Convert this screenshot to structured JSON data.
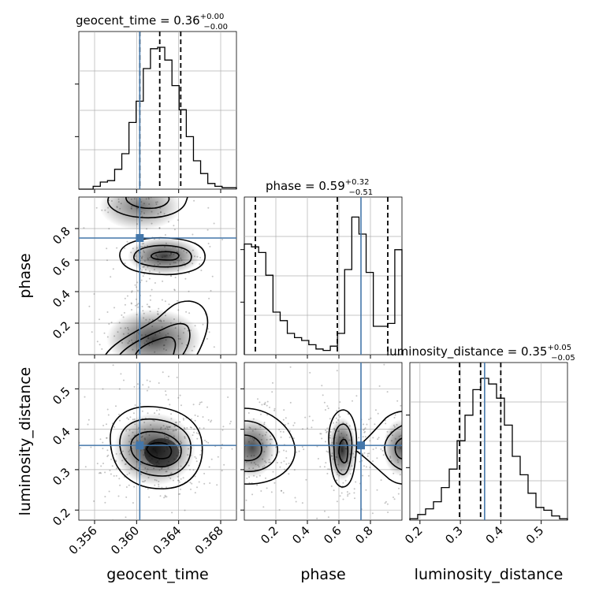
{
  "chart_data": {
    "type": "corner",
    "parameters": [
      "geocent_time",
      "phase",
      "luminosity_distance"
    ],
    "titles": [
      {
        "param": "geocent_time",
        "text": "geocent_time = 0.36",
        "median": 0.36,
        "plus": "+0.00",
        "minus": "−0.00"
      },
      {
        "param": "phase",
        "text": "phase = 0.59",
        "median": 0.59,
        "plus": "+0.32",
        "minus": "−0.51"
      },
      {
        "param": "luminosity_distance",
        "text": "luminosity_distance = 0.35",
        "median": 0.35,
        "plus": "+0.05",
        "minus": "−0.05"
      }
    ],
    "xlabels": [
      "geocent_time",
      "phase",
      "luminosity_distance"
    ],
    "ylabels": [
      "",
      "phase",
      "luminosity_distance"
    ],
    "ranges": {
      "geocent_time": [
        0.3545,
        0.3695
      ],
      "phase": [
        0.0,
        1.0
      ],
      "luminosity_distance": [
        0.175,
        0.565
      ]
    },
    "ticks": {
      "geocent_time": {
        "values": [
          0.356,
          0.36,
          0.364,
          0.368
        ],
        "labels": [
          "0.356",
          "0.360",
          "0.364",
          "0.368"
        ]
      },
      "phase_x": {
        "values": [
          0.2,
          0.4,
          0.6,
          0.8
        ],
        "labels": [
          "0.2",
          "0.4",
          "0.6",
          "0.8"
        ]
      },
      "phase_y": {
        "values": [
          0.2,
          0.4,
          0.6,
          0.8
        ],
        "labels": [
          "0.2",
          "0.4",
          "0.6",
          "0.8"
        ]
      },
      "luminosity_distance_x": {
        "values": [
          0.2,
          0.3,
          0.4,
          0.5
        ],
        "labels": [
          "0.2",
          "0.3",
          "0.4",
          "0.5"
        ]
      },
      "luminosity_distance_y": {
        "values": [
          0.2,
          0.3,
          0.4,
          0.5
        ],
        "labels": [
          "0.2",
          "0.3",
          "0.4",
          "0.5"
        ]
      }
    },
    "truths": {
      "geocent_time": 0.3603,
      "phase": 0.74,
      "luminosity_distance": 0.36
    },
    "quantiles": {
      "geocent_time": [
        0.3603,
        0.3622,
        0.3642
      ],
      "phase": [
        0.07,
        0.59,
        0.91
      ],
      "luminosity_distance": [
        0.298,
        0.35,
        0.4
      ]
    },
    "histograms": {
      "geocent_time": [
        0,
        0,
        0.02,
        0.05,
        0.06,
        0.14,
        0.25,
        0.47,
        0.62,
        0.85,
        0.99,
        1.0,
        0.91,
        0.73,
        0.56,
        0.37,
        0.2,
        0.11,
        0.04,
        0.02,
        0.01,
        0.01
      ],
      "phase": [
        0.78,
        0.76,
        0.72,
        0.56,
        0.3,
        0.24,
        0.15,
        0.12,
        0.1,
        0.07,
        0.04,
        0.03,
        0.06,
        0.15,
        0.6,
        0.97,
        0.85,
        0.58,
        0.2,
        0.2,
        0.22,
        0.74
      ],
      "luminosity_distance": [
        0.01,
        0.04,
        0.08,
        0.13,
        0.23,
        0.36,
        0.56,
        0.74,
        0.92,
        1.0,
        0.96,
        0.86,
        0.67,
        0.45,
        0.32,
        0.19,
        0.09,
        0.07,
        0.03,
        0.01
      ]
    },
    "grid": true,
    "colors": {
      "truth": "#4477aa",
      "contour": "#000000",
      "density": "#000000",
      "grid": "#b0b0b0"
    }
  }
}
